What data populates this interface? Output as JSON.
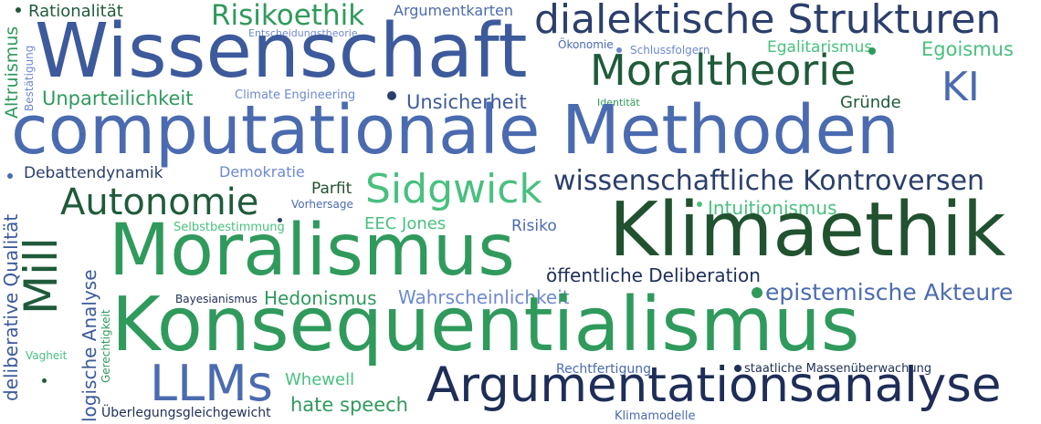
{
  "words": {
    "rationalitaet": "Rationalität",
    "risikoethik": "Risikoethik",
    "argumentkarten": "Argumentkarten",
    "dialektische": "dialektische Strukturen",
    "wissenschaft": "Wissenschaft",
    "entscheidungstheorie": "Entscheidungstheorie",
    "altruismus": "Altruismus",
    "bestaetigung": "Bestätigung",
    "oekonomie": "Ökonomie",
    "schlussfolgern": "Schlussfolgern",
    "egalitarismus": "Egalitarismus",
    "egoismus": "Egoismus",
    "moraltheorie": "Moraltheorie",
    "ki": "KI",
    "unparteilichkeit": "Unparteilichkeit",
    "climate_engineering": "Climate Engineering",
    "unsicherheit": "Unsicherheit",
    "identitaet": "Identität",
    "gruende": "Gründe",
    "computationale": "computationale Methoden",
    "debattendynamik": "Debattendynamik",
    "demokratie": "Demokratie",
    "wiss_kontroversen": "wissenschaftliche Kontroversen",
    "parfit": "Parfit",
    "autonomie": "Autonomie",
    "sidgwick": "Sidgwick",
    "vorhersage": "Vorhersage",
    "intuitionismus": "Intuitionismus",
    "deliberative_qualitaet": "deliberative Qualität",
    "mill": "Mill",
    "selbstbestimmung": "Selbstbestimmung",
    "eec_jones": "EEC Jones",
    "risiko": "Risiko",
    "klimaethik": "Klimaethik",
    "moralismus": "Moralismus",
    "oeff_deliberation": "öffentliche Deliberation",
    "logische_analyse": "logische Analyse",
    "gerechtigkeit": "Gerechtigkeit",
    "epistemische_akteure": "epistemische Akteure",
    "bayesianismus": "Bayesianismus",
    "hedonismus": "Hedonismus",
    "wahrscheinlichkeit": "Wahrscheinlichkeit",
    "konsequentialismus": "Konsequentialismus",
    "vagheit": "Vagheit",
    "llms": "LLMs",
    "rechtfertigung": "Rechtfertigung",
    "massenueberwachung": "staatliche Massenüberwachung",
    "whewell": "Whewell",
    "argumentationsanalyse": "Argumentationsanalyse",
    "hate_speech": "hate speech",
    "ueberlegungsgleichgewicht": "Überlegungsgleichgewicht",
    "klimamodelle": "Klimamodelle"
  },
  "colors": {
    "dark_green": "#1f5b3a",
    "green": "#2f9a5c",
    "light_green": "#49c07f",
    "navy": "#2b3f6c",
    "blue": "#3c5a9c",
    "medium_blue": "#4b6bb0",
    "light_blue": "#6e89d0",
    "dark_navy": "#1e2e58"
  }
}
